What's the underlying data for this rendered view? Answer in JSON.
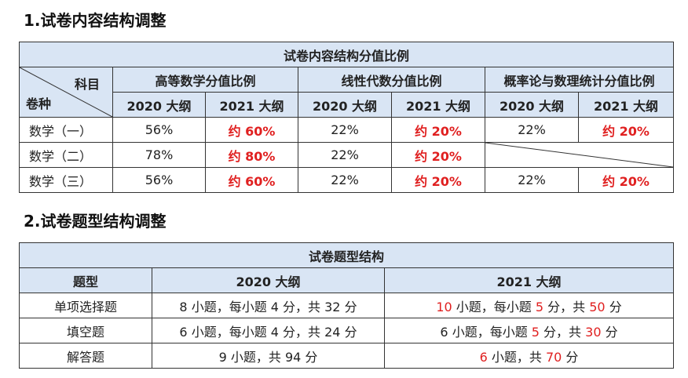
{
  "section1": {
    "heading": "1.试卷内容结构调整",
    "table_title": "试卷内容结构分值比例",
    "corner_top": "科目",
    "corner_bottom": "卷种",
    "groups": [
      "高等数学分值比例",
      "线性代数分值比例",
      "概率论与数理统计分值比例"
    ],
    "years": [
      "2020 大纲",
      "2021 大纲"
    ],
    "rows": [
      {
        "label": "数学（一）",
        "values": [
          "56%",
          "约 60%",
          "22%",
          "约 20%",
          "22%",
          "约 20%"
        ]
      },
      {
        "label": "数学（二）",
        "values": [
          "78%",
          "约 80%",
          "22%",
          "约 20%",
          "",
          ""
        ]
      },
      {
        "label": "数学（三）",
        "values": [
          "56%",
          "约 60%",
          "22%",
          "约 20%",
          "22%",
          "约 20%"
        ]
      }
    ]
  },
  "section2": {
    "heading": "2.试卷题型结构调整",
    "table_title": "试卷题型结构",
    "headers": [
      "题型",
      "2020 大纲",
      "2021 大纲"
    ],
    "rows": [
      {
        "type": "单项选择题",
        "y2020": "8 小题，每小题 4 分，共 32 分",
        "y2021": [
          {
            "t": "10",
            "red": true
          },
          {
            "t": " 小题，每小题 ",
            "red": false
          },
          {
            "t": "5",
            "red": true
          },
          {
            "t": " 分，共 ",
            "red": false
          },
          {
            "t": "50",
            "red": true
          },
          {
            "t": " 分",
            "red": false
          }
        ]
      },
      {
        "type": "填空题",
        "y2020": "6 小题，每小题 4 分，共 24 分",
        "y2021": [
          {
            "t": "6 小题，每小题 ",
            "red": false
          },
          {
            "t": "5",
            "red": true
          },
          {
            "t": " 分，共 ",
            "red": false
          },
          {
            "t": "30",
            "red": true
          },
          {
            "t": " 分",
            "red": false
          }
        ]
      },
      {
        "type": "解答题",
        "y2020": "9 小题，共 94 分",
        "y2021": [
          {
            "t": "6",
            "red": true
          },
          {
            "t": " 小题，共 ",
            "red": false
          },
          {
            "t": "70",
            "red": true
          },
          {
            "t": " 分",
            "red": false
          }
        ]
      }
    ]
  },
  "colors": {
    "header_bg": "#d9e5f4",
    "highlight": "#e02020"
  }
}
